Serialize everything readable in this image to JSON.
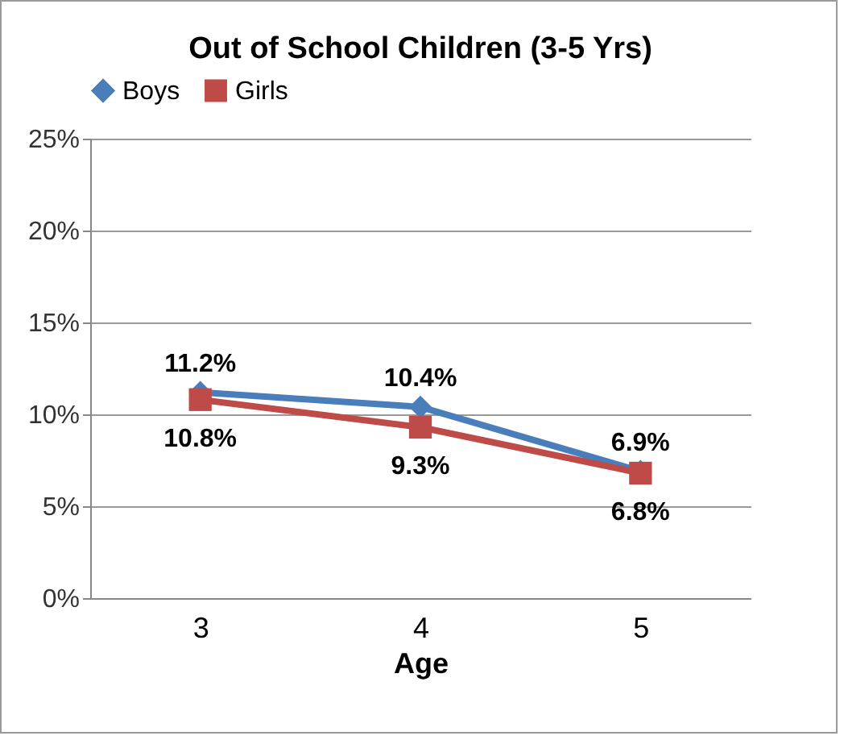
{
  "chart_data": {
    "type": "line",
    "title": "Out of School Children (3-5 Yrs)",
    "xlabel": "Age",
    "categories": [
      "3",
      "4",
      "5"
    ],
    "series": [
      {
        "name": "Boys",
        "color": "#4a7ebb",
        "marker": "diamond",
        "values": [
          11.2,
          10.4,
          6.9
        ],
        "value_labels": [
          "11.2%",
          "10.4%",
          "6.9%"
        ]
      },
      {
        "name": "Girls",
        "color": "#be4b48",
        "marker": "square",
        "values": [
          10.8,
          9.3,
          6.8
        ],
        "value_labels": [
          "10.8%",
          "9.3%",
          "6.8%"
        ]
      }
    ],
    "ylim": [
      0,
      25
    ],
    "yticks": [
      {
        "value": 0,
        "label": "0%"
      },
      {
        "value": 5,
        "label": "5%"
      },
      {
        "value": 10,
        "label": "10%"
      },
      {
        "value": 15,
        "label": "15%"
      },
      {
        "value": 20,
        "label": "20%"
      },
      {
        "value": 25,
        "label": "25%"
      }
    ],
    "grid": "y",
    "legend": "top"
  }
}
